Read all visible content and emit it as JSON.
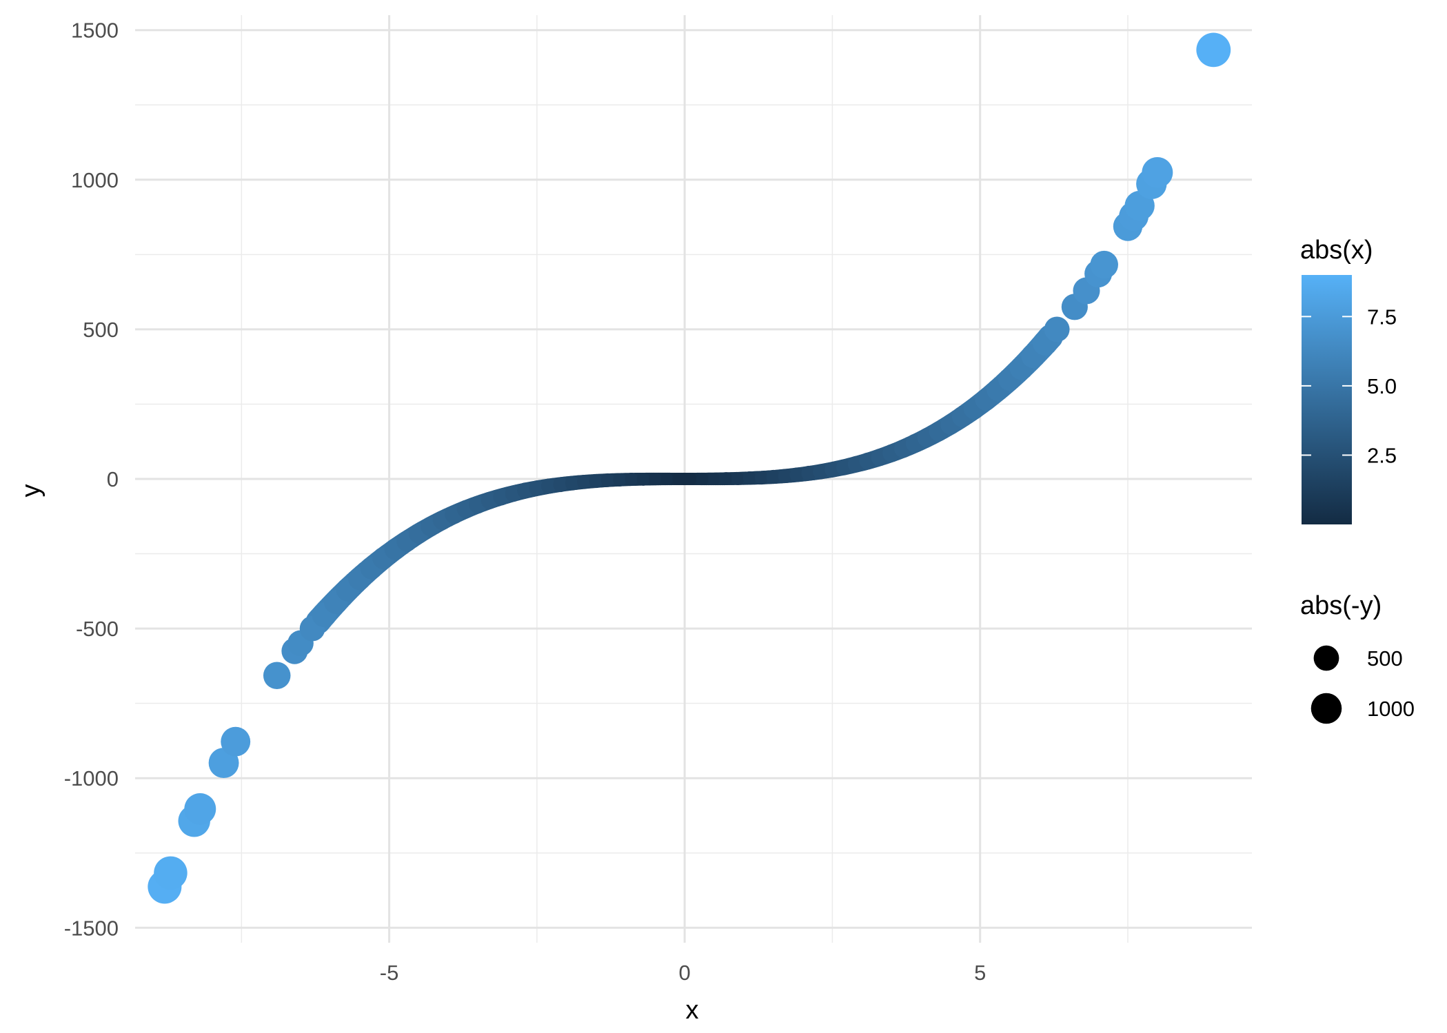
{
  "chart_data": {
    "type": "scatter",
    "title": "",
    "xlabel": "x",
    "ylabel": "y",
    "xlim": [
      -9.3,
      9.6
    ],
    "ylim": [
      -1550,
      1550
    ],
    "x_ticks": [
      -5,
      0,
      5
    ],
    "y_ticks": [
      -1500,
      -1000,
      -500,
      0,
      500,
      1000,
      1500
    ],
    "x_tick_labels": [
      "-5",
      "0",
      "5"
    ],
    "y_tick_labels": [
      "-1500",
      "-1000",
      "-500",
      "0",
      "500",
      "1000",
      "1500"
    ],
    "grid": true,
    "relation": "y = 2*x^3",
    "points": [
      [
        -8.8,
        -1363
      ],
      [
        -8.7,
        -1317
      ],
      [
        -8.3,
        -1143
      ],
      [
        -8.2,
        -1103
      ],
      [
        -7.8,
        -949
      ],
      [
        -7.6,
        -878
      ],
      [
        -6.9,
        -657
      ],
      [
        -6.6,
        -575
      ],
      [
        -6.5,
        -549
      ],
      [
        -6.3,
        -500
      ],
      [
        -6.1,
        -454
      ],
      [
        -5.9,
        -411
      ],
      [
        -5.7,
        -370
      ],
      [
        -5.5,
        -333
      ],
      [
        -5.3,
        -298
      ],
      [
        -5.1,
        -265
      ],
      [
        -4.9,
        -235
      ],
      [
        -4.7,
        -208
      ],
      [
        -4.5,
        -182
      ],
      [
        -4.3,
        -159
      ],
      [
        -4.1,
        -138
      ],
      [
        -3.9,
        -119
      ],
      [
        -3.7,
        -101
      ],
      [
        -3.5,
        -86
      ],
      [
        -3.3,
        -72
      ],
      [
        -3.1,
        -60
      ],
      [
        -2.9,
        -49
      ],
      [
        -2.7,
        -39
      ],
      [
        -2.5,
        -31
      ],
      [
        -2.3,
        -24
      ],
      [
        -2.1,
        -19
      ],
      [
        -1.9,
        -14
      ],
      [
        -1.7,
        -10
      ],
      [
        -1.5,
        -7
      ],
      [
        -1.3,
        -4
      ],
      [
        -1.1,
        -3
      ],
      [
        -0.9,
        -1
      ],
      [
        -0.7,
        -1
      ],
      [
        -0.5,
        0
      ],
      [
        -0.3,
        0
      ],
      [
        -0.1,
        0
      ],
      [
        0.1,
        0
      ],
      [
        0.3,
        0
      ],
      [
        0.5,
        0
      ],
      [
        0.7,
        1
      ],
      [
        0.9,
        1
      ],
      [
        1.1,
        3
      ],
      [
        1.3,
        4
      ],
      [
        1.5,
        7
      ],
      [
        1.7,
        10
      ],
      [
        1.9,
        14
      ],
      [
        2.1,
        19
      ],
      [
        2.3,
        24
      ],
      [
        2.5,
        31
      ],
      [
        2.7,
        39
      ],
      [
        2.9,
        49
      ],
      [
        3.1,
        60
      ],
      [
        3.3,
        72
      ],
      [
        3.5,
        86
      ],
      [
        3.7,
        101
      ],
      [
        3.9,
        119
      ],
      [
        4.1,
        138
      ],
      [
        4.3,
        159
      ],
      [
        4.5,
        182
      ],
      [
        4.7,
        208
      ],
      [
        4.9,
        235
      ],
      [
        5.1,
        265
      ],
      [
        5.3,
        298
      ],
      [
        5.5,
        333
      ],
      [
        5.7,
        370
      ],
      [
        5.9,
        411
      ],
      [
        6.1,
        454
      ],
      [
        6.3,
        500
      ],
      [
        6.6,
        575
      ],
      [
        6.8,
        629
      ],
      [
        7.0,
        686
      ],
      [
        7.1,
        716
      ],
      [
        7.5,
        844
      ],
      [
        7.6,
        878
      ],
      [
        7.7,
        913
      ],
      [
        7.9,
        986
      ],
      [
        8.0,
        1024
      ],
      [
        8.95,
        1434
      ]
    ],
    "color_legend": {
      "title": "abs(x)",
      "labels": [
        "2.5",
        "5.0",
        "7.5"
      ],
      "values": [
        2.5,
        5.0,
        7.5
      ],
      "range": [
        0,
        9
      ],
      "low_color": "#132b43",
      "high_color": "#56b1f7"
    },
    "size_legend": {
      "title": "abs(-y)",
      "labels": [
        "500",
        "1000"
      ],
      "values": [
        500,
        1000
      ]
    },
    "legend_placement": "right"
  }
}
